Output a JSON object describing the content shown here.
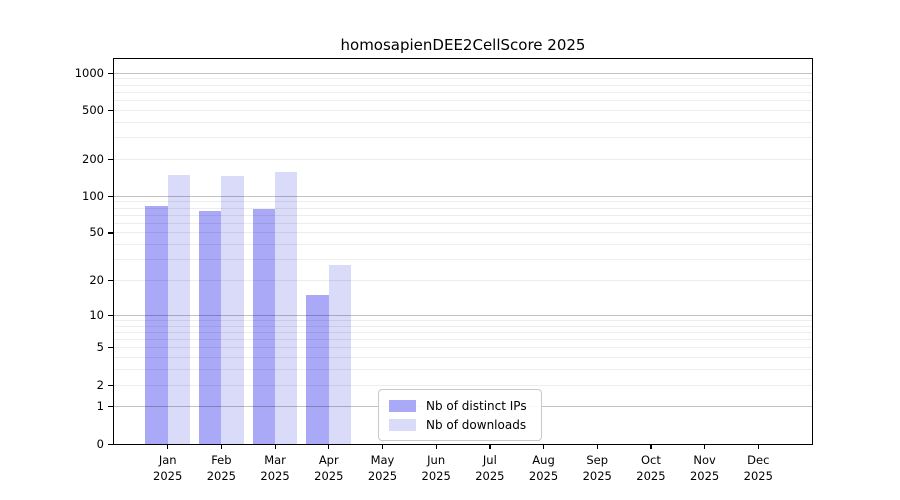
{
  "chart_data": {
    "type": "bar",
    "title": "homosapienDEE2CellScore 2025",
    "categories": [
      "Jan 2025",
      "Feb 2025",
      "Mar 2025",
      "Apr 2025",
      "May 2025",
      "Jun 2025",
      "Jul 2025",
      "Aug 2025",
      "Sep 2025",
      "Oct 2025",
      "Nov 2025",
      "Dec 2025"
    ],
    "series": [
      {
        "name": "Nb of distinct IPs",
        "color": "#a9a9f8",
        "values": [
          83,
          76,
          79,
          15,
          0,
          0,
          0,
          0,
          0,
          0,
          0,
          0
        ]
      },
      {
        "name": "Nb of downloads",
        "color": "#dadaf9",
        "values": [
          150,
          145,
          158,
          27,
          0,
          0,
          0,
          0,
          0,
          0,
          0,
          0
        ]
      }
    ],
    "yscale": "log1p",
    "ylim": [
      0,
      1300
    ],
    "yticks": [
      0,
      1,
      2,
      5,
      10,
      20,
      50,
      100,
      200,
      500,
      1000
    ],
    "grid": true,
    "legend_position": "bottom-center",
    "xlabel": "",
    "ylabel": ""
  },
  "colors": {
    "grid_major": "rgba(0,0,0,0.24)",
    "grid_minor": "rgba(0,0,0,0.07)",
    "spine": "#000000",
    "legend_border": "#c9c9c9",
    "background": "#ffffff"
  }
}
